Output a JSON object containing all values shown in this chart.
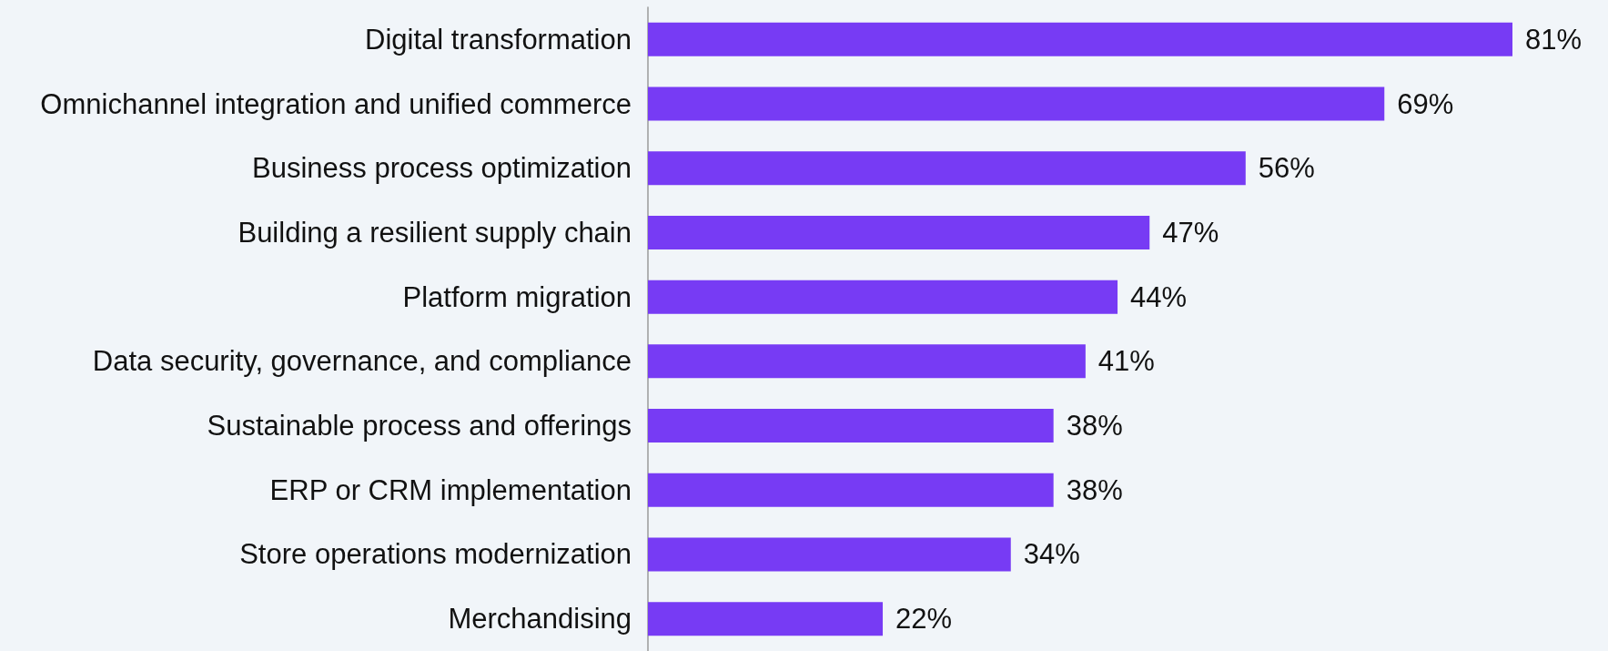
{
  "chart_data": {
    "type": "bar",
    "orientation": "horizontal",
    "categories": [
      "Digital transformation",
      "Omnichannel integration and unified commerce",
      "Business process optimization",
      "Building a resilient supply chain",
      "Platform migration",
      "Data security, governance, and compliance",
      "Sustainable process and offerings",
      "ERP or CRM implementation",
      "Store operations modernization",
      "Merchandising"
    ],
    "values": [
      81,
      69,
      56,
      47,
      44,
      41,
      38,
      38,
      34,
      22
    ],
    "value_labels": [
      "81%",
      "69%",
      "56%",
      "47%",
      "44%",
      "41%",
      "38%",
      "38%",
      "34%",
      "22%"
    ],
    "color": "#773bf4"
  }
}
